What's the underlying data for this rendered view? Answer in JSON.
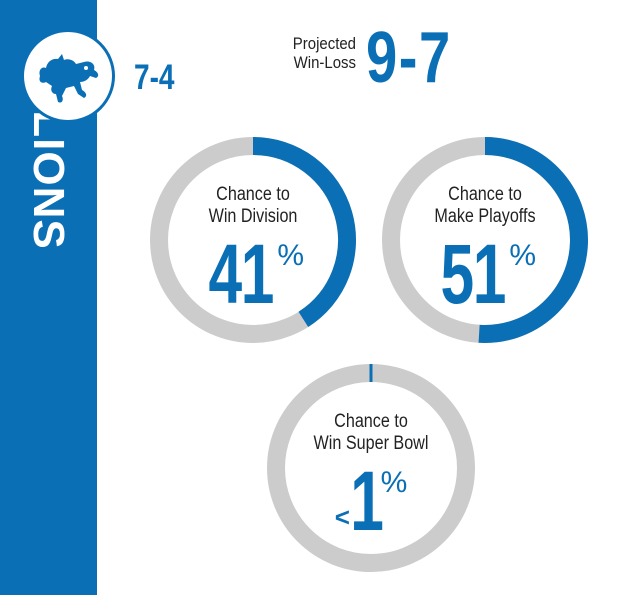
{
  "team": {
    "name": "LIONS",
    "logo_icon": "detroit-lions-logo-icon",
    "record": "7-4"
  },
  "projection": {
    "label_line1": "Projected",
    "label_line2": "Win-Loss",
    "value": "9-7"
  },
  "colors": {
    "primary": "#0a6fb5",
    "track": "#cccccc",
    "text": "#222222",
    "background": "#ffffff"
  },
  "chart_data": {
    "type": "pie",
    "series": [
      {
        "label_line1": "Chance to",
        "label_line2": "Win Division",
        "value": 41,
        "prefix": "",
        "display": "41",
        "unit": "%"
      },
      {
        "label_line1": "Chance to",
        "label_line2": "Make Playoffs",
        "value": 51,
        "prefix": "",
        "display": "51",
        "unit": "%"
      },
      {
        "label_line1": "Chance to",
        "label_line2": "Win Super Bowl",
        "value": 1,
        "prefix": "<",
        "display": "1",
        "unit": "%"
      }
    ]
  }
}
